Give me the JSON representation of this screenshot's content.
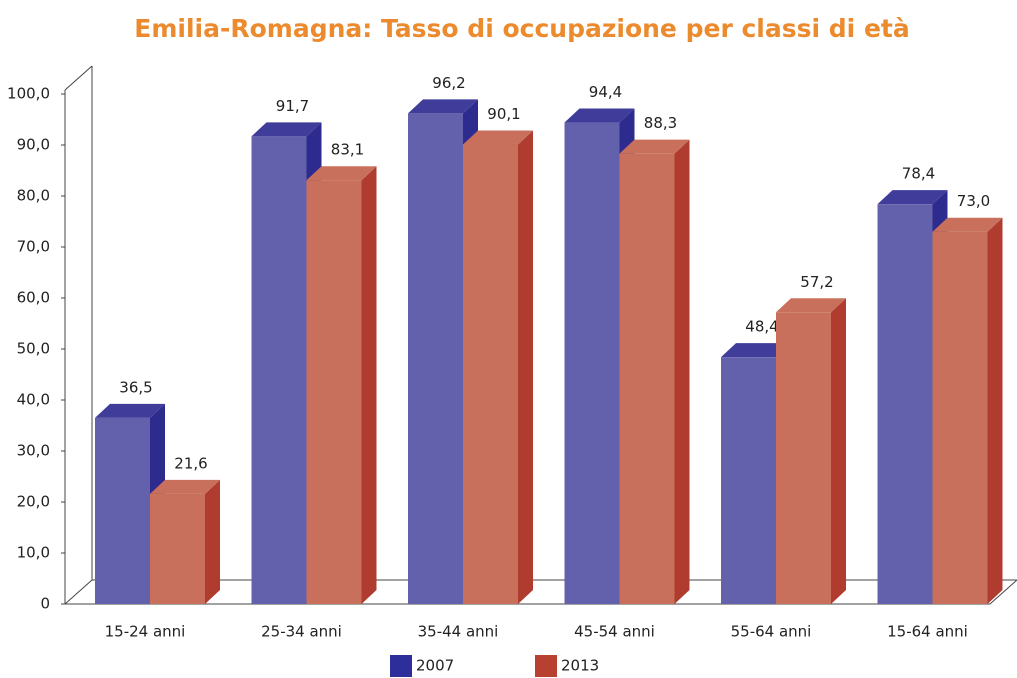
{
  "chart_data": {
    "type": "bar3d",
    "title": "Emilia-Romagna: Tasso di occupazione per classi di età",
    "categories": [
      "15-24 anni",
      "25-34 anni",
      "35-44 anni",
      "45-54 anni",
      "55-64 anni",
      "15-64 anni"
    ],
    "series": [
      {
        "name": "2007",
        "color": "#6461ac",
        "values": [
          36.5,
          91.7,
          96.2,
          94.4,
          48.4,
          78.4
        ],
        "value_labels": [
          "36,5",
          "91,7",
          "96,2",
          "94,4",
          "48,4",
          "78,4"
        ]
      },
      {
        "name": "2013",
        "color": "#c8705c",
        "values": [
          21.6,
          83.1,
          90.1,
          88.3,
          57.2,
          73.0
        ],
        "value_labels": [
          "21,6",
          "83,1",
          "90,1",
          "88,3",
          "57,2",
          "73,0"
        ]
      }
    ],
    "ylim": [
      0,
      100
    ],
    "yticks": [
      0,
      {
        "value": 10,
        "label": "10,0"
      },
      {
        "value": 20,
        "label": "20,0"
      },
      {
        "value": 30,
        "label": "30,0"
      },
      {
        "value": 40,
        "label": "40,0"
      },
      {
        "value": 50,
        "label": "50,0"
      },
      {
        "value": 60,
        "label": "60,0"
      },
      {
        "value": 70,
        "label": "70,0"
      },
      {
        "value": 80,
        "label": "80,0"
      },
      {
        "value": 90,
        "label": "90,0"
      },
      {
        "value": 100,
        "label": "100,0"
      }
    ],
    "grid": false
  }
}
